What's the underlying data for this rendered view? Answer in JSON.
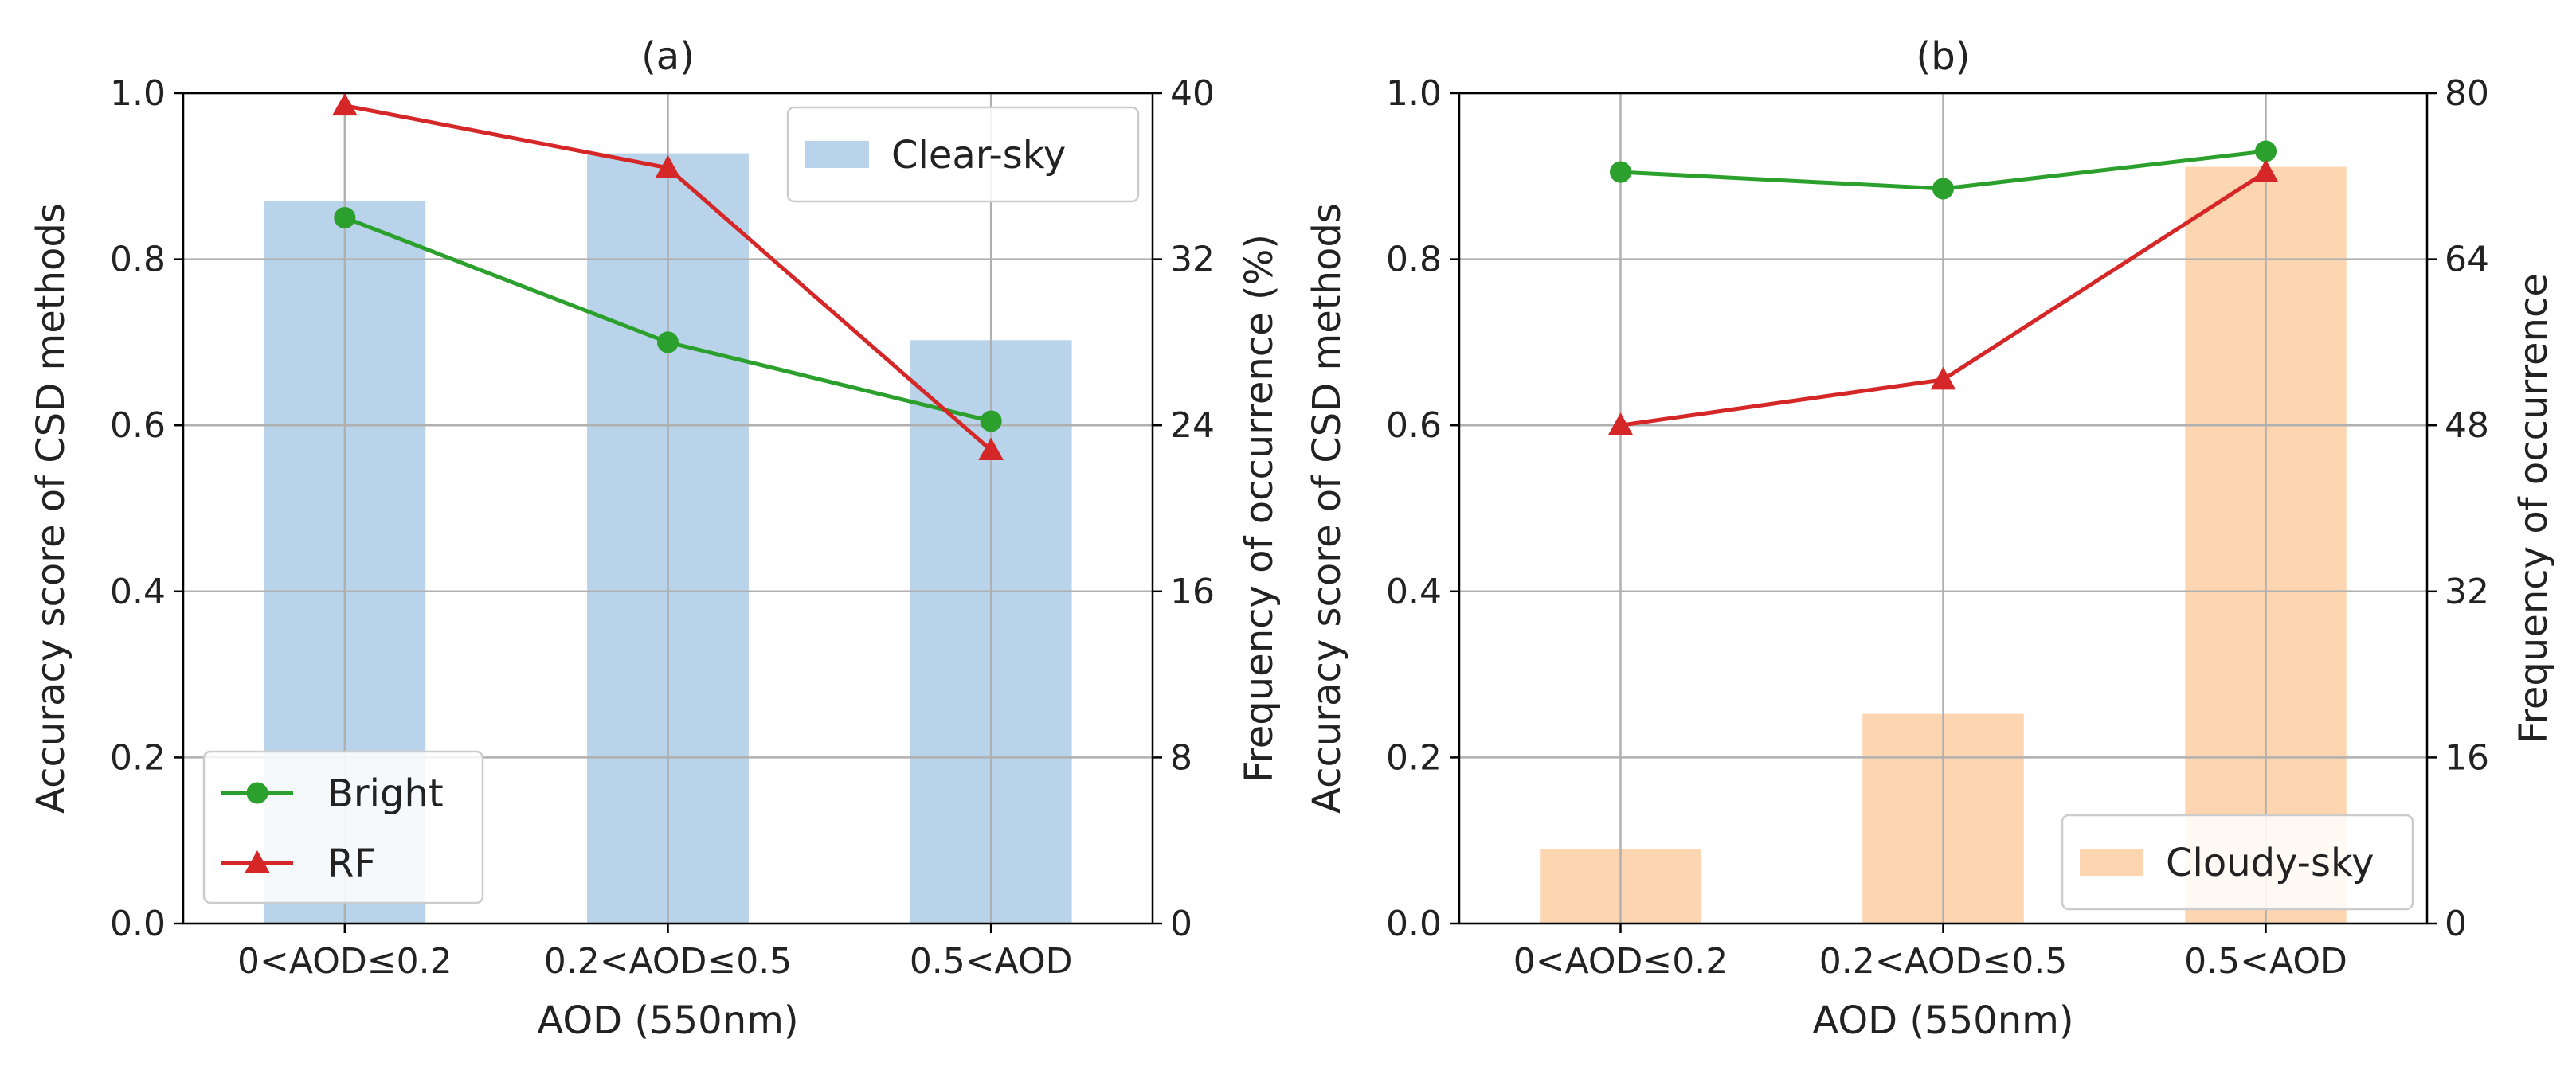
{
  "chart_data": [
    {
      "type": "bar+line",
      "panel": "a",
      "title": "(a)",
      "xlabel": "AOD (550nm)",
      "ylabel_left": "Accuracy score of CSD methods",
      "ylabel_right": "Frequency of occurrence (%)",
      "categories": [
        "0<AOD≤0.2",
        "0.2<AOD≤0.5",
        "0.5<AOD"
      ],
      "ylim_left": [
        0,
        1.0
      ],
      "ylim_right": [
        0,
        40
      ],
      "yticks_left": [
        "0.0",
        "0.2",
        "0.4",
        "0.6",
        "0.8",
        "1.0"
      ],
      "yticks_right": [
        "0",
        "8",
        "16",
        "24",
        "32",
        "40"
      ],
      "bars": {
        "name": "Clear-sky",
        "axis": "right",
        "color": "#b9d3ea",
        "values": [
          34.8,
          37.1,
          28.1
        ]
      },
      "series": [
        {
          "name": "Bright",
          "axis": "left",
          "color": "#2ca02c",
          "marker": "circle",
          "values": [
            0.85,
            0.7,
            0.605
          ]
        },
        {
          "name": "RF",
          "axis": "left",
          "color": "#d62728",
          "marker": "triangle",
          "values": [
            0.985,
            0.91,
            0.57
          ]
        }
      ],
      "grid": true,
      "legend_bars_position": "top-right",
      "legend_lines_position": "bottom-left"
    },
    {
      "type": "bar+line",
      "panel": "b",
      "title": "(b)",
      "xlabel": "AOD (550nm)",
      "ylabel_left": "Accuracy score of CSD methods",
      "ylabel_right": "Frequency of occurrence",
      "categories": [
        "0<AOD≤0.2",
        "0.2<AOD≤0.5",
        "0.5<AOD"
      ],
      "ylim_left": [
        0,
        1.0
      ],
      "ylim_right": [
        0,
        80
      ],
      "yticks_left": [
        "0.0",
        "0.2",
        "0.4",
        "0.6",
        "0.8",
        "1.0"
      ],
      "yticks_right": [
        "0",
        "16",
        "32",
        "48",
        "64",
        "80"
      ],
      "bars": {
        "name": "Cloudy-sky",
        "axis": "right",
        "color": "#fdd5b0",
        "values": [
          7.2,
          20.2,
          72.9
        ]
      },
      "series": [
        {
          "name": "Bright",
          "axis": "left",
          "color": "#2ca02c",
          "marker": "circle",
          "values": [
            0.905,
            0.885,
            0.93
          ]
        },
        {
          "name": "RF",
          "axis": "left",
          "color": "#d62728",
          "marker": "triangle",
          "values": [
            0.6,
            0.655,
            0.905
          ]
        }
      ],
      "grid": true,
      "legend_bars_position": "bottom-right"
    }
  ]
}
